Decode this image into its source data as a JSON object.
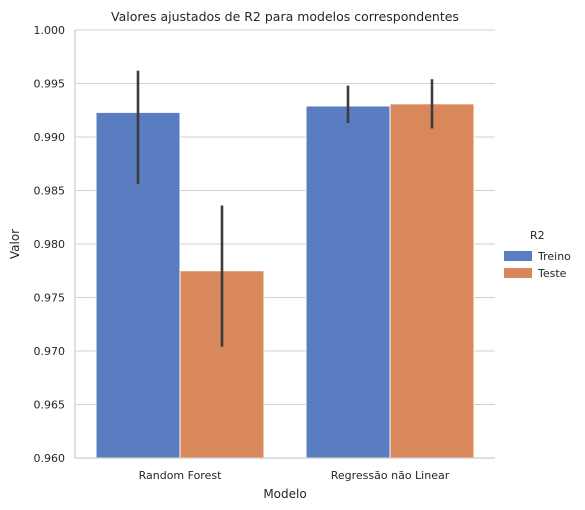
{
  "chart_data": {
    "type": "bar",
    "title": "Valores ajustados de R2 para modelos correspondentes",
    "xlabel": "Modelo",
    "ylabel": "Valor",
    "categories": [
      "Random Forest",
      "Regressão não Linear"
    ],
    "ylim": [
      0.96,
      1.0
    ],
    "yticks": [
      "0.960",
      "0.965",
      "0.970",
      "0.975",
      "0.980",
      "0.985",
      "0.990",
      "0.995",
      "1.000"
    ],
    "grid": "horizontal",
    "legend": {
      "title": "R2",
      "placement": "right"
    },
    "series": [
      {
        "name": "Treino",
        "color": "#5a7dc2",
        "values": [
          0.9923,
          0.9929
        ],
        "err_low": [
          0.9856,
          0.9913
        ],
        "err_high": [
          0.9962,
          0.9948
        ]
      },
      {
        "name": "Teste",
        "color": "#d8885a",
        "values": [
          0.9775,
          0.9931
        ],
        "err_low": [
          0.9704,
          0.9908
        ],
        "err_high": [
          0.9836,
          0.9954
        ]
      }
    ]
  }
}
